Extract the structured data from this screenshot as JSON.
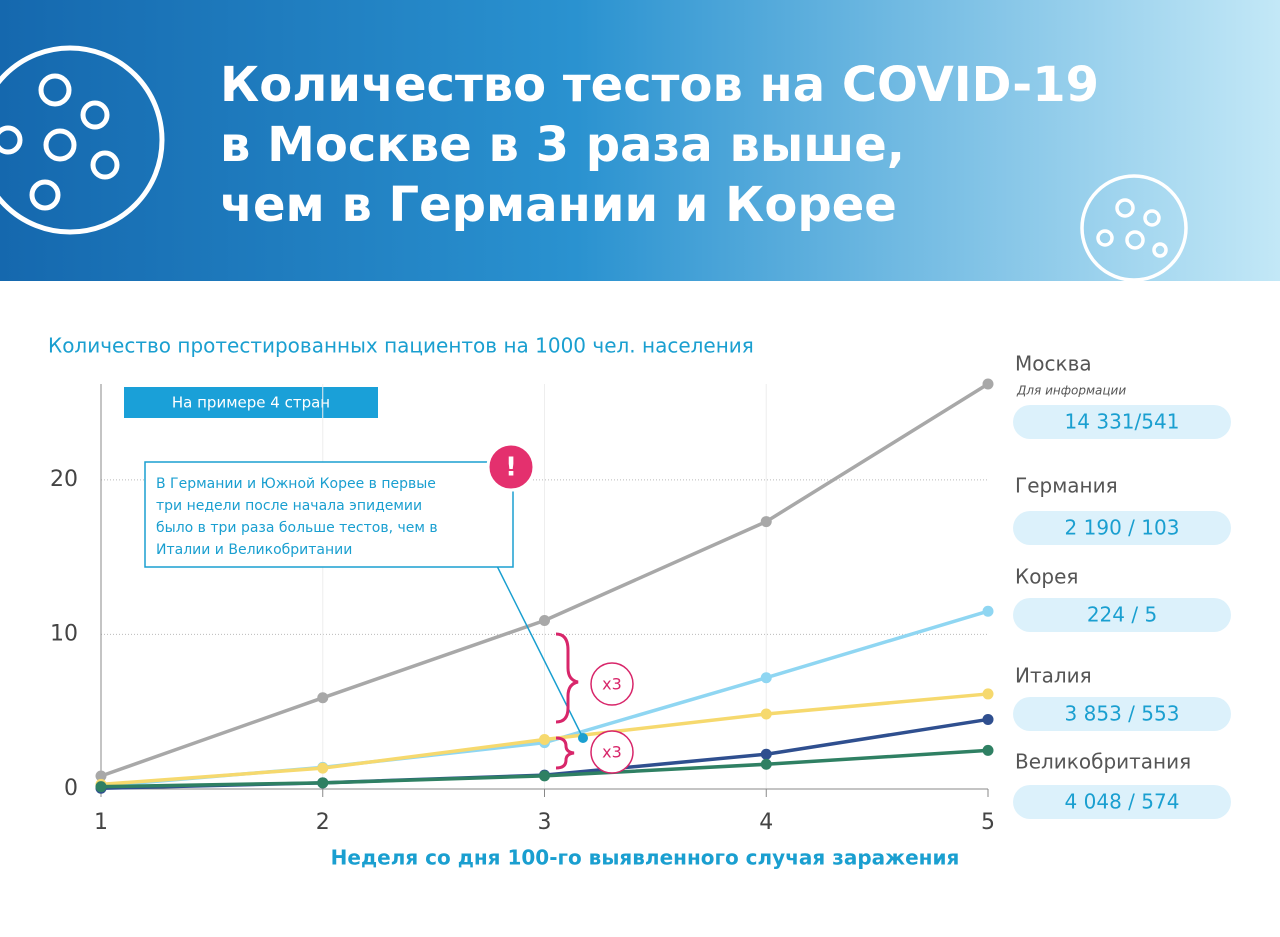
{
  "header": {
    "title_lines": [
      "Количество тестов на COVID-19",
      "в Москве в 3 раза выше,",
      "чем в Германии и Корее"
    ]
  },
  "chart_data": {
    "type": "line",
    "subtitle": "Количество протестированных пациентов на 1000 чел. населения",
    "x_label": "Неделя со дня 100-го выявленного случая заражения",
    "x": [
      1,
      2,
      3,
      4,
      5
    ],
    "xlim": [
      1,
      5
    ],
    "xticks": [
      1,
      2,
      3,
      4,
      5
    ],
    "ylim": [
      0,
      26.2
    ],
    "yticks": [
      0,
      10,
      20
    ],
    "grid": true,
    "series": [
      {
        "color": "#a8a8a8",
        "values": [
          0.84,
          5.9,
          10.9,
          17.3,
          26.2
        ]
      },
      {
        "color": "#8fd6f2",
        "values": [
          0.2,
          1.4,
          3.0,
          7.2,
          11.5
        ]
      },
      {
        "color": "#f6d96e",
        "values": [
          0.3,
          1.35,
          3.2,
          4.85,
          6.15
        ]
      },
      {
        "color": "#2f4f8f",
        "values": [
          0.05,
          0.4,
          0.9,
          2.25,
          4.5
        ]
      },
      {
        "color": "#2f8063",
        "values": [
          0.15,
          0.4,
          0.85,
          1.6,
          2.5
        ]
      }
    ],
    "annotations": {
      "badge": "На примере 4 стран",
      "callout": [
        "В Германии и Южной Корее в первые",
        "три недели после начала эпидемии",
        "было в три раза больше тестов, чем в",
        "Италии и Великобритании"
      ],
      "alert": "!",
      "ratio_top": "x3",
      "ratio_bottom": "x3"
    }
  },
  "info_panel": {
    "note": "Для информации",
    "items": [
      {
        "name": "Москва",
        "value": "14 331/541"
      },
      {
        "name": "Германия",
        "value": "2 190 / 103"
      },
      {
        "name": "Корея",
        "value": "224 / 5"
      },
      {
        "name": "Италия",
        "value": "3 853 / 553"
      },
      {
        "name": "Великобритания",
        "value": "4 048 / 574"
      }
    ]
  }
}
